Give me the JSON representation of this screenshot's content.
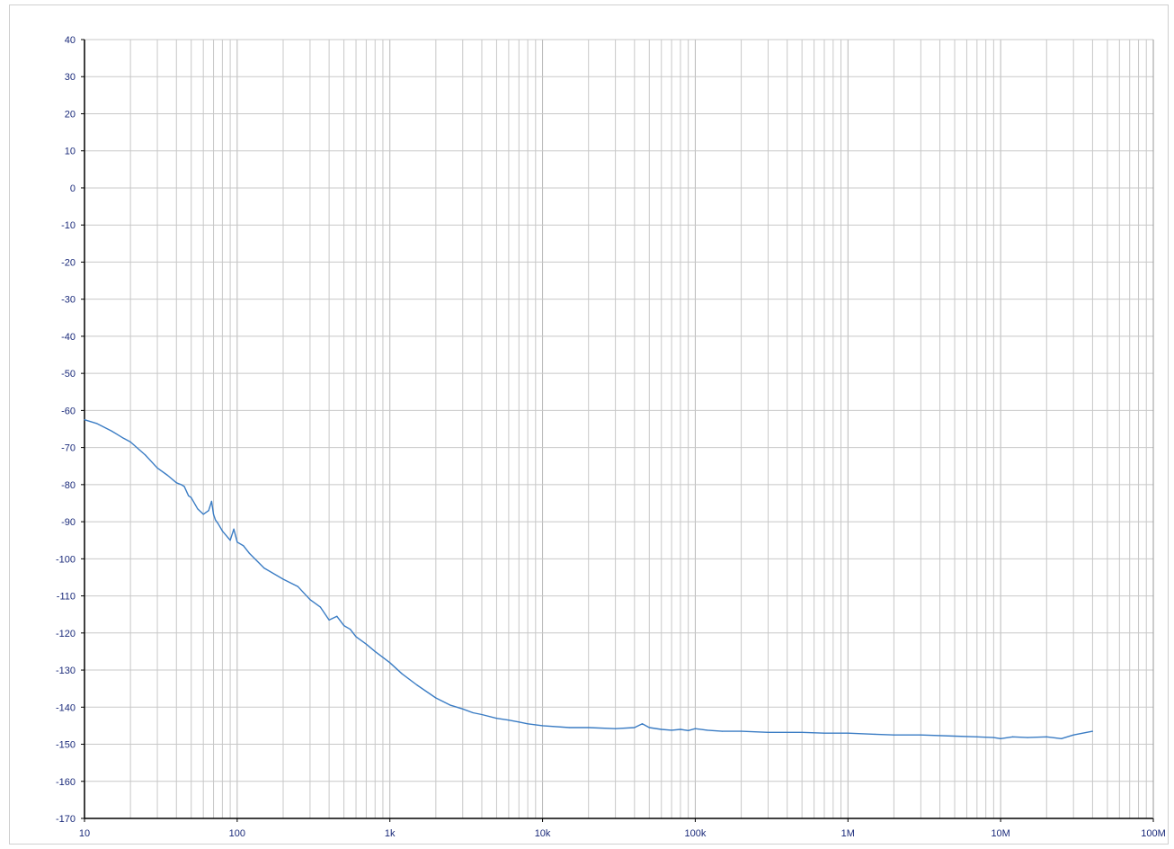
{
  "chart_data": {
    "type": "line",
    "title": "",
    "xlabel": "",
    "ylabel": "",
    "x_scale": "log",
    "xlim": [
      10,
      100000000
    ],
    "ylim": [
      -170,
      40
    ],
    "grid": true,
    "x_ticks": [
      {
        "value": 10,
        "label": "10"
      },
      {
        "value": 100,
        "label": "100"
      },
      {
        "value": 1000,
        "label": "1k"
      },
      {
        "value": 10000,
        "label": "10k"
      },
      {
        "value": 100000,
        "label": "100k"
      },
      {
        "value": 1000000,
        "label": "1M"
      },
      {
        "value": 10000000,
        "label": "10M"
      },
      {
        "value": 100000000,
        "label": "100M"
      }
    ],
    "y_ticks": [
      {
        "value": 40,
        "label": "40"
      },
      {
        "value": 30,
        "label": "30"
      },
      {
        "value": 20,
        "label": "20"
      },
      {
        "value": 10,
        "label": "10"
      },
      {
        "value": 0,
        "label": "0"
      },
      {
        "value": -10,
        "label": "-10"
      },
      {
        "value": -20,
        "label": "-20"
      },
      {
        "value": -30,
        "label": "-30"
      },
      {
        "value": -40,
        "label": "-40"
      },
      {
        "value": -50,
        "label": "-50"
      },
      {
        "value": -60,
        "label": "-60"
      },
      {
        "value": -70,
        "label": "-70"
      },
      {
        "value": -80,
        "label": "-80"
      },
      {
        "value": -90,
        "label": "-90"
      },
      {
        "value": -100,
        "label": "-100"
      },
      {
        "value": -110,
        "label": "-110"
      },
      {
        "value": -120,
        "label": "-120"
      },
      {
        "value": -130,
        "label": "-130"
      },
      {
        "value": -140,
        "label": "-140"
      },
      {
        "value": -150,
        "label": "-150"
      },
      {
        "value": -160,
        "label": "-160"
      },
      {
        "value": -170,
        "label": "-170"
      }
    ],
    "colors": {
      "line": "#3a7cc4",
      "grid": "#c8c8c8",
      "axis": "#000000",
      "tick_text": "#1a2a7a"
    },
    "series": [
      {
        "x": [
          10,
          12,
          15,
          18,
          20,
          25,
          30,
          35,
          40,
          43,
          45,
          48,
          50,
          55,
          60,
          65,
          68,
          70,
          72,
          75,
          80,
          90,
          95,
          100,
          110,
          120,
          150,
          200,
          250,
          300,
          350,
          400,
          450,
          500,
          550,
          600,
          700,
          800,
          1000,
          1200,
          1500,
          2000,
          2500,
          3000,
          3500,
          4000,
          5000,
          6000,
          7000,
          8000,
          10000,
          15000,
          20000,
          30000,
          40000,
          45000,
          50000,
          60000,
          70000,
          80000,
          90000,
          100000,
          120000,
          150000,
          200000,
          300000,
          500000,
          700000,
          1000000,
          1500000,
          2000000,
          3000000,
          5000000,
          7000000,
          9000000,
          10000000,
          12000000,
          15000000,
          20000000,
          25000000,
          30000000,
          40000000
        ],
        "y": [
          -62.5,
          -63.5,
          -65.5,
          -67.5,
          -68.5,
          -72,
          -75.5,
          -77.5,
          -79.5,
          -80,
          -80.5,
          -83,
          -83.5,
          -86.5,
          -88,
          -87,
          -84.5,
          -88,
          -89.5,
          -90.5,
          -92.5,
          -95,
          -92,
          -95.5,
          -96.5,
          -98.5,
          -102.5,
          -105.5,
          -107.5,
          -111,
          -113,
          -116.5,
          -115.5,
          -118,
          -119,
          -121,
          -123,
          -125,
          -128,
          -131,
          -134,
          -137.5,
          -139.5,
          -140.5,
          -141.5,
          -142,
          -143,
          -143.5,
          -144,
          -144.5,
          -145,
          -145.5,
          -145.5,
          -145.8,
          -145.5,
          -144.5,
          -145.5,
          -146,
          -146.2,
          -146,
          -146.3,
          -145.8,
          -146.2,
          -146.5,
          -146.5,
          -146.8,
          -146.8,
          -147,
          -147,
          -147.3,
          -147.5,
          -147.5,
          -147.8,
          -148,
          -148.2,
          -148.5,
          -148,
          -148.2,
          -148,
          -148.5,
          -147.5,
          -146.5
        ]
      }
    ]
  }
}
